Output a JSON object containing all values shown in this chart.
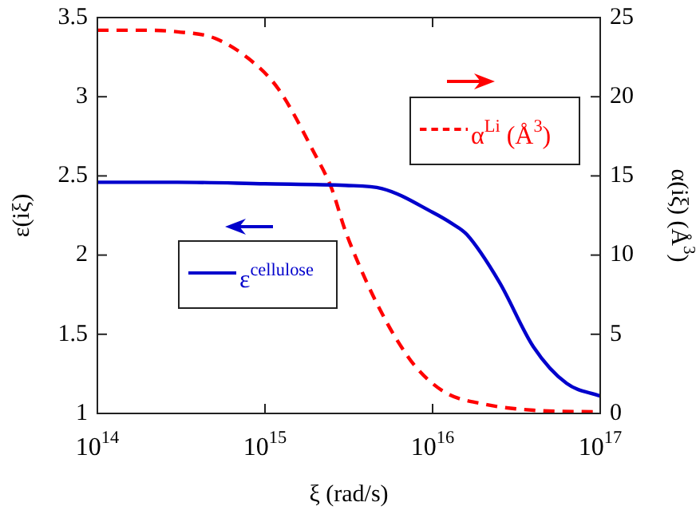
{
  "chart_data": {
    "type": "line",
    "xlabel": "ξ (rad/s)",
    "ylabel": "ε(iξ)",
    "y2label": "α(iξ) (Å$^{3}$)",
    "log": "x",
    "marker": "none",
    "legend": "right",
    "grid": false,
    "xlim": [
      100000000000000.0,
      1e+17
    ],
    "xticks": [
      {
        "value": 100000000000000.0,
        "label": "10$^{14}$"
      },
      {
        "value": 1000000000000000.0,
        "label": "10$^{15}$"
      },
      {
        "value": 1e+16,
        "label": "10$^{16}$"
      },
      {
        "value": 1e+17,
        "label": "10$^{17}$"
      }
    ],
    "ylim": [
      1,
      3.5
    ],
    "yticks": [
      1,
      1.5,
      2,
      2.5,
      3,
      3.5
    ],
    "y2lim": [
      0,
      25
    ],
    "y2ticks": [
      0,
      5,
      10,
      15,
      20,
      25
    ],
    "series": [
      {
        "name": "ε$^{cellulose}$",
        "color": "#0000cc",
        "line_style": "solid",
        "x": [
          100000000000000.0,
          300000000000000.0,
          1000000000000000.0,
          3000000000000000.0,
          5000000000000000.0,
          1e+16,
          1.3e+16,
          1.6e+16,
          2.5e+16,
          4e+16,
          6.3e+16,
          1e+17
        ],
        "values": [
          2.46,
          2.46,
          2.45,
          2.44,
          2.42,
          2.27,
          2.2,
          2.13,
          1.83,
          1.42,
          1.19,
          1.11
        ]
      },
      {
        "name": "α$^{Li}$ (Å$^{3}$)",
        "color": "#ff0000",
        "line_style": "dashed",
        "axis": "y2",
        "x": [
          100000000000000.0,
          200000000000000.0,
          300000000000000.0,
          500000000000000.0,
          800000000000000.0,
          1200000000000000.0,
          2000000000000000.0,
          2500000000000000.0,
          3000000000000000.0,
          4000000000000000.0,
          5000000000000000.0,
          6000000000000000.0,
          8000000000000000.0,
          1.2e+16,
          2e+16,
          4e+16,
          1e+17
        ],
        "values": [
          24.2,
          24.2,
          24.1,
          23.7,
          22.4,
          20.5,
          16.3,
          14.2,
          11.6,
          8.4,
          6.3,
          4.8,
          2.9,
          1.3,
          0.6,
          0.2,
          0.1
        ]
      }
    ]
  }
}
